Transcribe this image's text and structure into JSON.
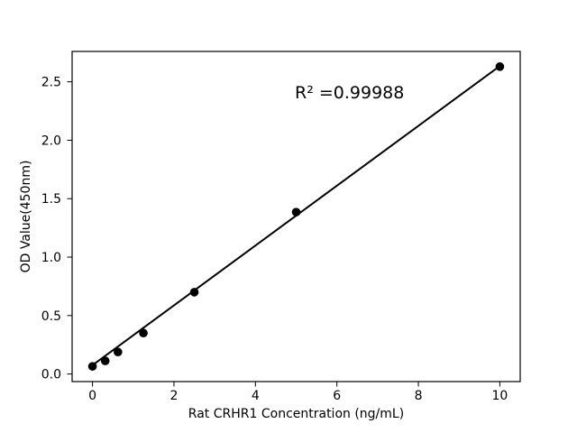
{
  "chart_data": {
    "type": "scatter",
    "title": "",
    "xlabel": "Rat CRHR1 Concentration (ng/mL)",
    "ylabel": "OD Value(450nm)",
    "annotation": "R² =0.99988",
    "r_squared": 0.99988,
    "points": {
      "x": [
        0,
        0.313,
        0.625,
        1.25,
        2.5,
        5,
        10
      ],
      "y": [
        0.065,
        0.112,
        0.188,
        0.35,
        0.7,
        1.385,
        2.63
      ]
    },
    "fit_line": {
      "x": [
        0,
        10
      ],
      "y": [
        0.075,
        2.635
      ]
    },
    "xlim": [
      -0.5,
      10.5
    ],
    "ylim": [
      -0.065,
      2.76
    ],
    "xticks": {
      "values": [
        0,
        2,
        4,
        6,
        8,
        10
      ],
      "labels": [
        "0",
        "2",
        "4",
        "6",
        "8",
        "10"
      ]
    },
    "yticks": {
      "values": [
        0,
        0.5,
        1.0,
        1.5,
        2.0,
        2.5
      ],
      "labels": [
        "0.0",
        "0.5",
        "1.0",
        "1.5",
        "2.0",
        "2.5"
      ]
    },
    "grid": false,
    "legend": null,
    "colors": {
      "line": "#000000",
      "marker": "#000000",
      "text": "#000000",
      "background": "#ffffff"
    }
  }
}
